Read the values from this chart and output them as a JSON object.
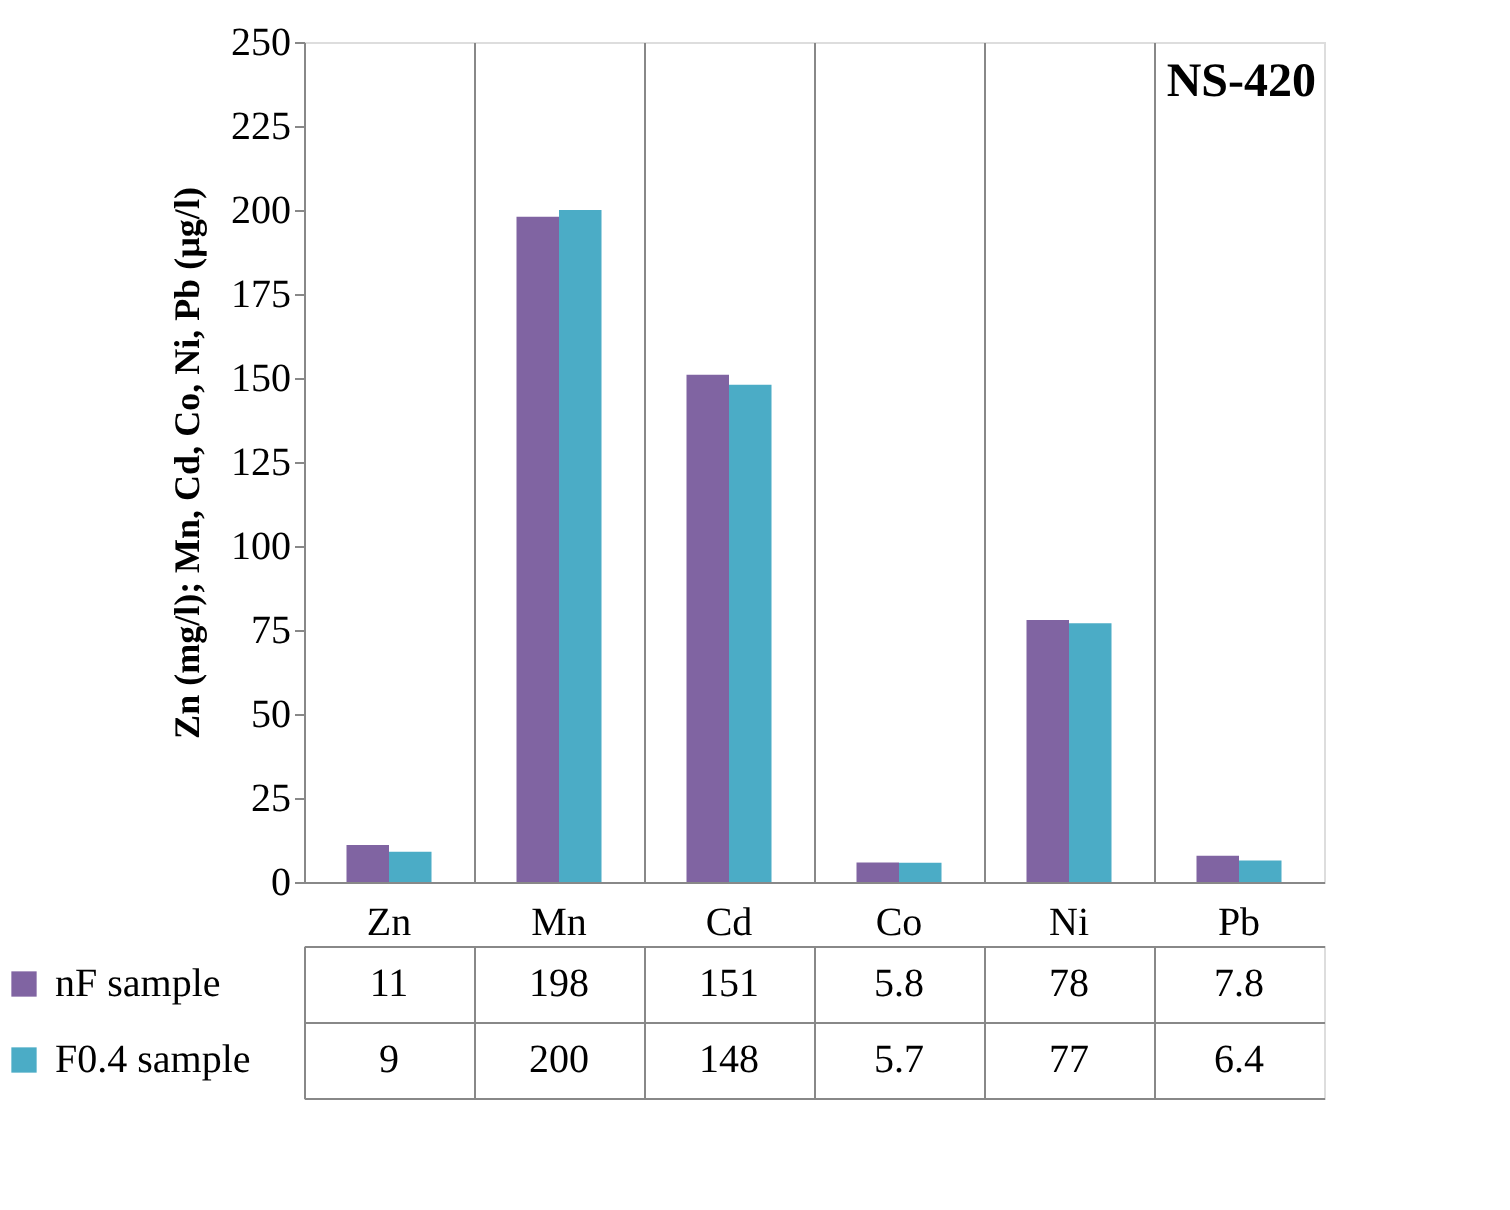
{
  "chart_data": {
    "type": "bar",
    "title": "NS-420",
    "ylabel": "Zn (mg/l); Mn, Cd, Co, Ni, Pb (µg/l)",
    "categories": [
      "Zn",
      "Mn",
      "Cd",
      "Co",
      "Ni",
      "Pb"
    ],
    "series": [
      {
        "name": "nF sample",
        "color": "#8064a2",
        "values": [
          11,
          198,
          151,
          5.8,
          78,
          7.8
        ]
      },
      {
        "name": "F0.4 sample",
        "color": "#4bacc6",
        "values": [
          9,
          200,
          148,
          5.7,
          77,
          6.4
        ]
      }
    ],
    "ylim": [
      0,
      250
    ],
    "yticks": [
      0,
      25,
      50,
      75,
      100,
      125,
      150,
      175,
      200,
      225,
      250
    ],
    "grid": "x",
    "legend": "bottom",
    "data_labels": true
  }
}
